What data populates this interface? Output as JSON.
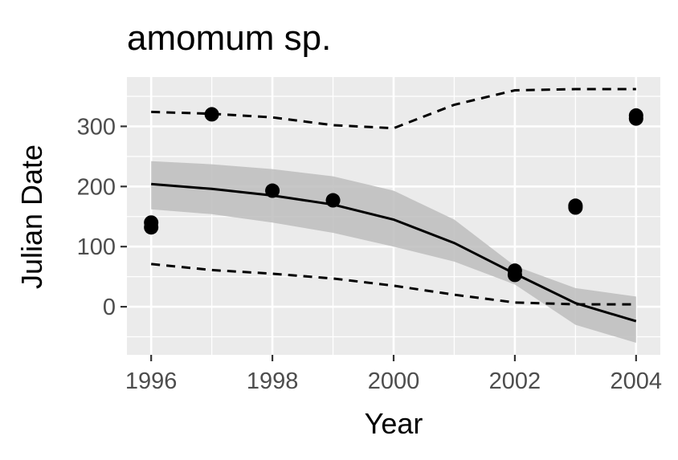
{
  "chart_data": {
    "type": "line",
    "title": "amomum sp.",
    "xlabel": "Year",
    "ylabel": "Julian Date",
    "xlim": [
      1995.6,
      2004.4
    ],
    "ylim": [
      -80,
      382
    ],
    "x_ticks": [
      1996,
      1998,
      2000,
      2002,
      2004
    ],
    "x_tick_labels": [
      "1996",
      "1998",
      "2000",
      "2002",
      "2004"
    ],
    "y_ticks": [
      0,
      100,
      200,
      300
    ],
    "y_tick_labels": [
      "0",
      "100",
      "200",
      "300"
    ],
    "grid": true,
    "legend": "none",
    "colors": {
      "panel": "#ebebeb",
      "grid": "#ffffff",
      "points": "#000000",
      "ribbon": "#bdbdbd",
      "fit_line": "#000000"
    },
    "points": [
      {
        "x": 1996,
        "y": 140
      },
      {
        "x": 1996,
        "y": 132
      },
      {
        "x": 1997,
        "y": 320
      },
      {
        "x": 1998,
        "y": 193
      },
      {
        "x": 1999,
        "y": 177
      },
      {
        "x": 2002,
        "y": 60
      },
      {
        "x": 2002,
        "y": 53
      },
      {
        "x": 2003,
        "y": 168
      },
      {
        "x": 2003,
        "y": 165
      },
      {
        "x": 2004,
        "y": 318
      },
      {
        "x": 2004,
        "y": 313
      }
    ],
    "fit": {
      "x": [
        1996,
        1997,
        1998,
        1999,
        2000,
        2001,
        2002,
        2003,
        2004
      ],
      "y": [
        204,
        196,
        185,
        170,
        145,
        106,
        55,
        6,
        -24
      ]
    },
    "ribbon": {
      "x": [
        1996,
        1997,
        1998,
        1999,
        2000,
        2001,
        2002,
        2003,
        2004
      ],
      "upper": [
        242,
        237,
        229,
        217,
        193,
        145,
        68,
        31,
        17
      ],
      "lower": [
        162,
        154,
        140,
        123,
        100,
        75,
        37,
        -30,
        -60
      ]
    },
    "upper_dashed": {
      "x": [
        1996,
        1997,
        1998,
        1999,
        2000,
        2001,
        2002,
        2003,
        2004
      ],
      "y": [
        324,
        321,
        315,
        302,
        297,
        336,
        360,
        362,
        362
      ]
    },
    "lower_dashed": {
      "x": [
        1996,
        1997,
        1998,
        1999,
        2000,
        2001,
        2002,
        2003,
        2004
      ],
      "y": [
        71,
        61,
        55,
        47,
        35,
        20,
        7,
        4,
        4
      ]
    }
  }
}
